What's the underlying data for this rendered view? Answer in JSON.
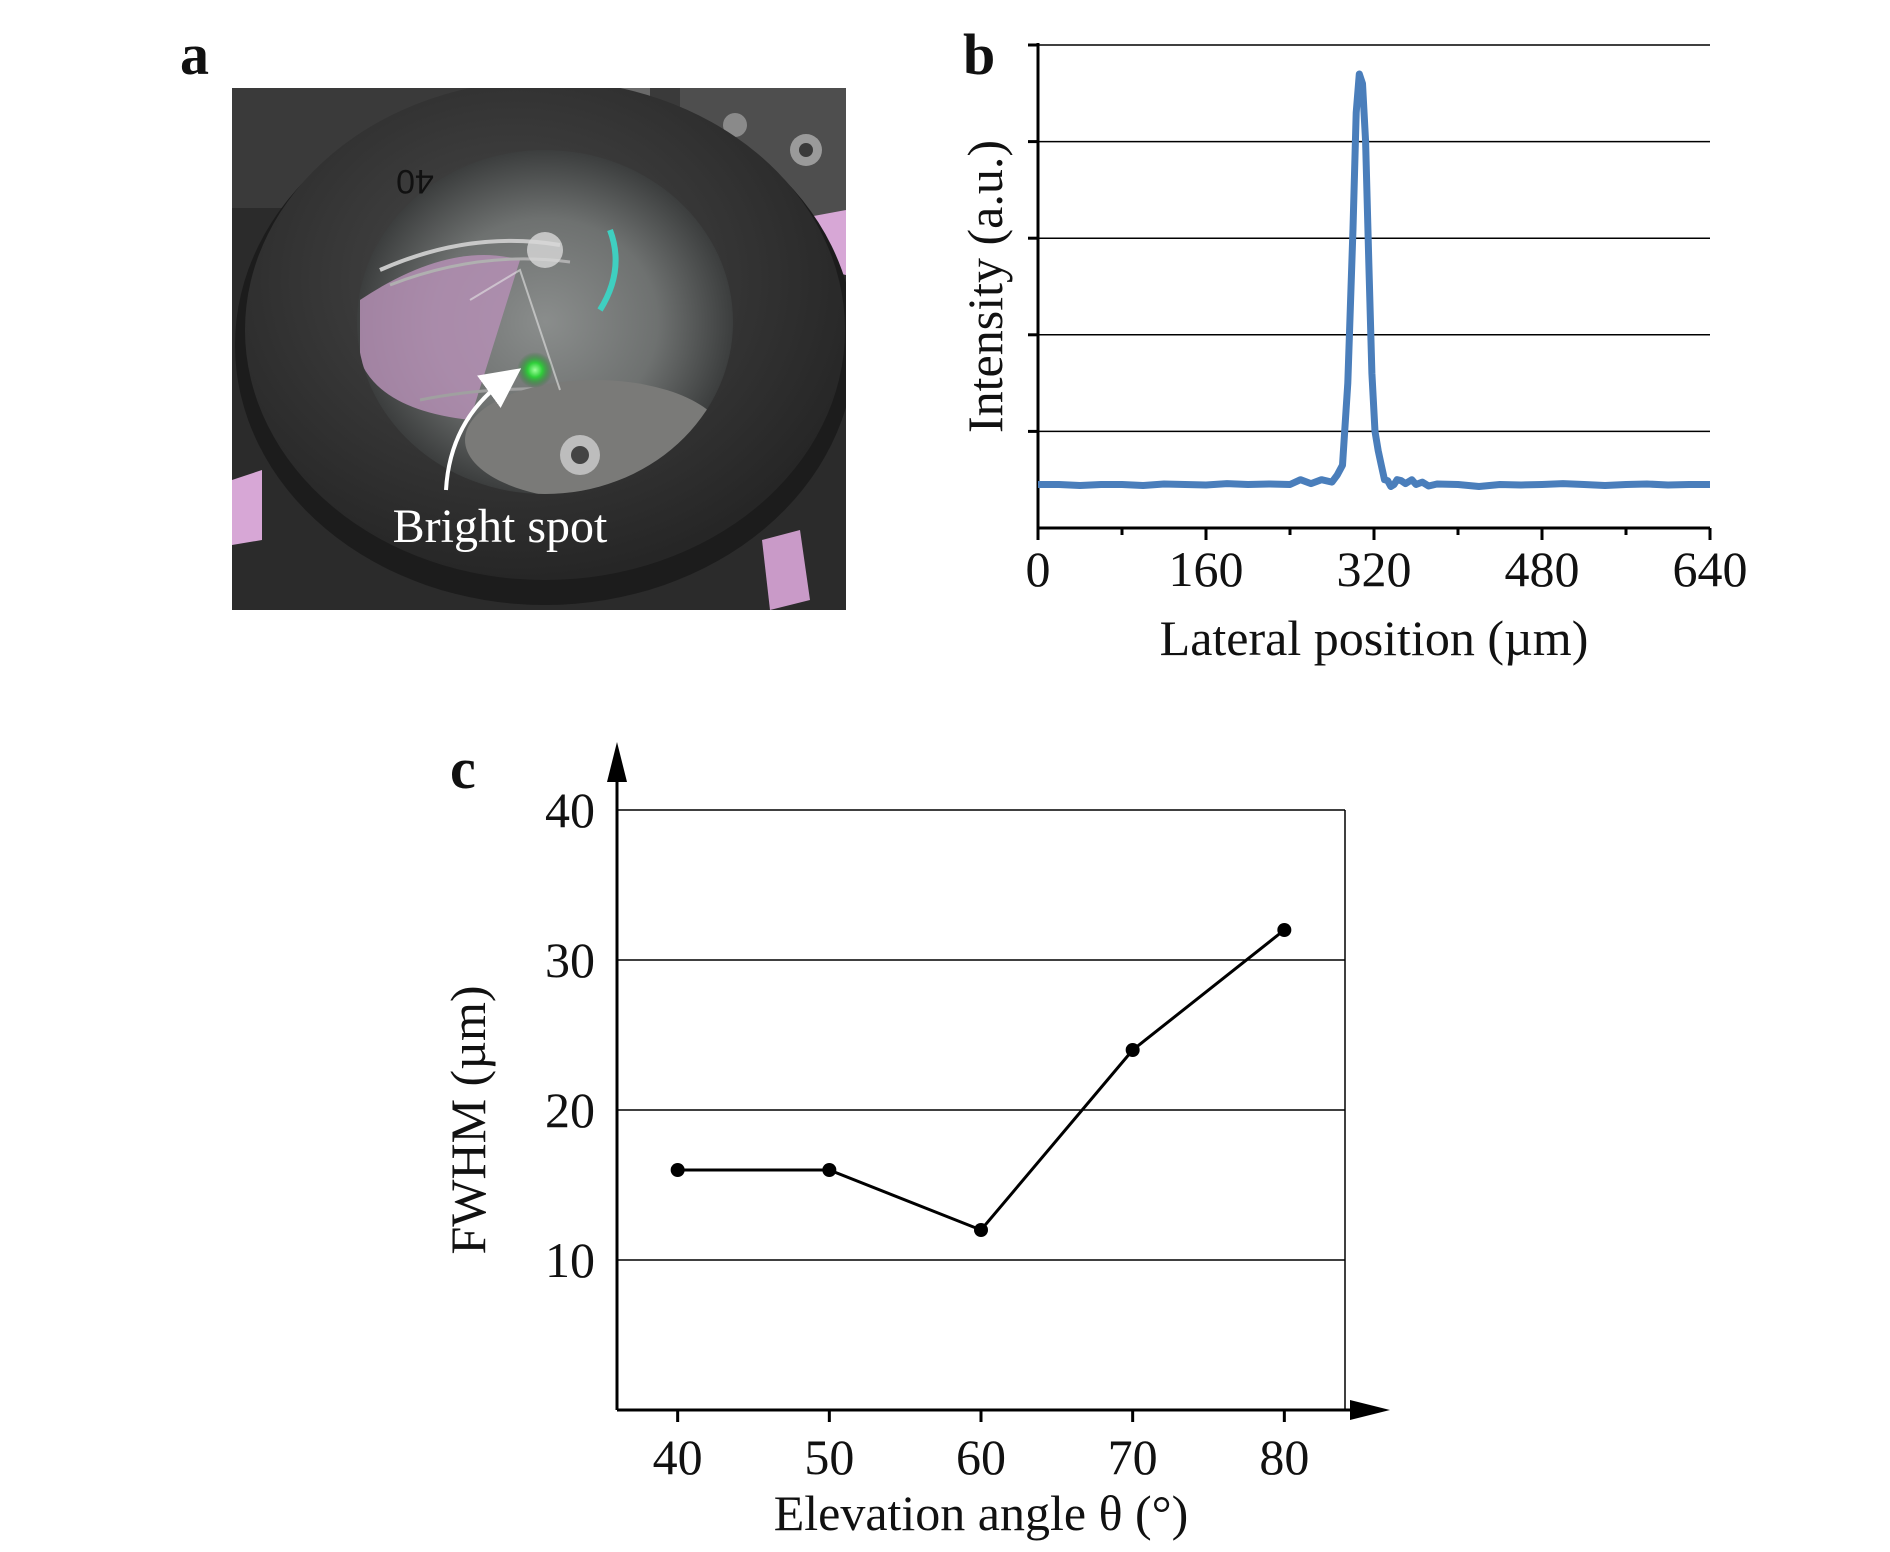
{
  "panels": {
    "a": {
      "letter": "a",
      "annotation": "Bright spot",
      "lens_marking": "40"
    },
    "b": {
      "letter": "b"
    },
    "c": {
      "letter": "c"
    }
  },
  "chart_data": [
    {
      "panel": "b",
      "type": "line",
      "xlabel": "Lateral position (µm)",
      "ylabel": "Intensity (a.u.)",
      "x_ticks": [
        "0",
        "160",
        "320",
        "480",
        "640"
      ],
      "xlim": [
        0,
        640
      ],
      "ylim": [
        0,
        1
      ],
      "y_gridlines": [
        0.2,
        0.4,
        0.6,
        0.8,
        1.0
      ],
      "y_tick_labels_shown": false,
      "grid": true,
      "series_color": "#4a7ebb",
      "x": [
        0,
        20,
        40,
        60,
        80,
        100,
        120,
        140,
        160,
        180,
        200,
        220,
        240,
        250,
        260,
        270,
        280,
        285,
        290,
        295,
        300,
        303,
        306,
        309,
        312,
        315,
        318,
        321,
        324,
        327,
        330,
        333,
        336,
        339,
        342,
        346,
        350,
        356,
        360,
        366,
        372,
        380,
        400,
        420,
        440,
        460,
        480,
        500,
        520,
        540,
        560,
        580,
        600,
        620,
        640
      ],
      "y": [
        0.09,
        0.09,
        0.088,
        0.09,
        0.09,
        0.088,
        0.091,
        0.09,
        0.089,
        0.092,
        0.09,
        0.091,
        0.09,
        0.1,
        0.092,
        0.1,
        0.095,
        0.11,
        0.13,
        0.3,
        0.62,
        0.86,
        0.94,
        0.92,
        0.8,
        0.55,
        0.32,
        0.2,
        0.16,
        0.13,
        0.1,
        0.098,
        0.086,
        0.09,
        0.1,
        0.098,
        0.092,
        0.1,
        0.09,
        0.095,
        0.087,
        0.091,
        0.09,
        0.086,
        0.09,
        0.089,
        0.09,
        0.092,
        0.09,
        0.088,
        0.09,
        0.091,
        0.089,
        0.09,
        0.09
      ]
    },
    {
      "panel": "c",
      "type": "line",
      "xlabel": "Elevation angle θ (°)",
      "ylabel": "FWHM (µm)",
      "x": [
        40,
        50,
        60,
        70,
        80
      ],
      "x_ticks": [
        "40",
        "50",
        "60",
        "70",
        "80"
      ],
      "y": [
        16,
        16,
        12,
        24,
        32
      ],
      "y_ticks": [
        "10",
        "20",
        "30",
        "40"
      ],
      "xlim": [
        36,
        84
      ],
      "ylim": [
        0,
        40
      ],
      "grid": true,
      "series_color": "#000000",
      "markers": true
    }
  ]
}
